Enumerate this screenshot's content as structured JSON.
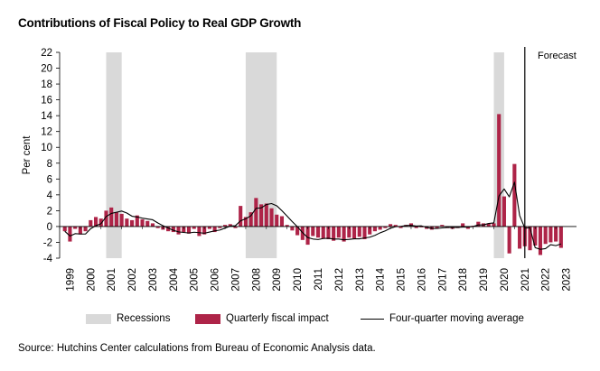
{
  "title": "Contributions of Fiscal Policy to Real GDP Growth",
  "source": "Source: Hutchins Center calculations from Bureau of Economic Analysis data.",
  "colors": {
    "bar": "#ae2448",
    "recession": "#d9d9d9",
    "line": "#000000",
    "axis": "#000000"
  },
  "chart_data": {
    "type": "bar",
    "title": "Contributions of Fiscal Policy to Real GDP Growth",
    "ylabel": "Per cent",
    "ylim": [
      -4,
      22
    ],
    "yticks": [
      -4,
      -2,
      0,
      2,
      4,
      6,
      8,
      10,
      12,
      14,
      16,
      18,
      20,
      22
    ],
    "grid": false,
    "x_tick_labels": [
      "1999",
      "2000",
      "2001",
      "2002",
      "2003",
      "2004",
      "2005",
      "2006",
      "2007",
      "2008",
      "2009",
      "2010",
      "2011",
      "2012",
      "2013",
      "2014",
      "2015",
      "2016",
      "2017",
      "2018",
      "2019",
      "2020",
      "2021",
      "2022",
      "2023"
    ],
    "forecast_label": "Forecast",
    "forecast_start": 2021.5,
    "legend_position": "bottom",
    "recessions": [
      {
        "label": "Recessions",
        "start": 2001.25,
        "end": 2002.0
      },
      {
        "start": 2008.0,
        "end": 2009.5
      },
      {
        "start": 2020.0,
        "end": 2020.5
      }
    ],
    "series": [
      {
        "name": "Quarterly fiscal impact",
        "type": "bar",
        "start": 1999.25,
        "step": 0.25,
        "values": [
          -0.6,
          -1.9,
          -0.3,
          -1.0,
          -0.6,
          0.8,
          1.2,
          1.0,
          2.0,
          2.4,
          1.8,
          1.6,
          1.0,
          0.8,
          1.4,
          0.9,
          0.7,
          0.4,
          -0.2,
          -0.4,
          -0.6,
          -0.7,
          -1.0,
          -0.7,
          -0.9,
          -0.3,
          -1.2,
          -1.0,
          -0.3,
          -0.7,
          -0.2,
          0.2,
          0.3,
          -0.2,
          2.6,
          1.2,
          1.8,
          3.6,
          2.8,
          2.9,
          2.3,
          1.5,
          1.3,
          0.2,
          -0.5,
          -1.1,
          -1.7,
          -2.3,
          -1.2,
          -1.4,
          -1.5,
          -1.6,
          -1.8,
          -1.4,
          -1.9,
          -1.4,
          -1.5,
          -1.3,
          -1.6,
          -1.0,
          -0.6,
          -0.4,
          -0.2,
          0.3,
          0.2,
          -0.2,
          0.2,
          0.4,
          -0.2,
          -0.1,
          -0.3,
          -0.4,
          -0.2,
          0.2,
          -0.2,
          -0.3,
          -0.2,
          0.4,
          -0.3,
          0.1,
          0.6,
          0.4,
          0.4,
          0.4,
          14.2,
          3.8,
          -3.4,
          7.9,
          -2.8,
          -2.5,
          -3.0,
          -2.4,
          -3.6,
          -2.2,
          -2.0,
          -1.9,
          -2.7
        ]
      },
      {
        "name": "Four-quarter moving average",
        "type": "line",
        "start": 1999.25,
        "step": 0.25,
        "values": [
          -0.6,
          -1.2,
          -0.9,
          -0.95,
          -0.95,
          -0.28,
          0.1,
          0.35,
          1.25,
          1.65,
          1.8,
          1.95,
          1.7,
          1.3,
          1.2,
          1.05,
          0.95,
          0.85,
          0.45,
          0.1,
          -0.2,
          -0.48,
          -0.68,
          -0.75,
          -0.82,
          -0.72,
          -0.78,
          -0.85,
          -0.7,
          -0.55,
          -0.45,
          -0.2,
          0.05,
          0.1,
          0.72,
          0.98,
          1.35,
          2.3,
          2.35,
          2.78,
          2.9,
          2.62,
          2.0,
          1.32,
          0.62,
          -0.02,
          -0.78,
          -1.4,
          -1.58,
          -1.65,
          -1.52,
          -1.48,
          -1.58,
          -1.58,
          -1.68,
          -1.63,
          -1.55,
          -1.55,
          -1.45,
          -1.35,
          -1.12,
          -0.8,
          -0.55,
          -0.22,
          -0.02,
          0.02,
          0.12,
          0.15,
          0.05,
          0.08,
          -0.1,
          -0.25,
          -0.25,
          -0.18,
          -0.12,
          -0.12,
          -0.12,
          -0.08,
          -0.08,
          0.0,
          0.2,
          0.2,
          0.38,
          0.45,
          3.85,
          4.75,
          3.75,
          5.6,
          1.38,
          -0.2,
          -0.15,
          -2.67,
          -2.88,
          -2.8,
          -2.3,
          -2.42,
          -2.2
        ]
      }
    ]
  }
}
